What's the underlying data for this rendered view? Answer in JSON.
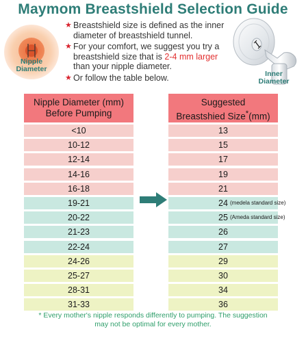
{
  "title": "Maymom Breastshield Selection Guide",
  "nipple_label_line1": "Nipple",
  "nipple_label_line2": "Diameter",
  "inner_label_line1": "Inner",
  "inner_label_line2": "Diameter",
  "bullets": {
    "b1": "Breastshield size is defined as the inner diameter of breastshield tunnel.",
    "b2_pre": "For your comfort, we suggest you try a breastshield size that is ",
    "b2_hl": "2-4 mm larger",
    "b2_post": " than your nipple diameter.",
    "b3": "Or follow the table below."
  },
  "table": {
    "left_header_line1": "Nipple Diameter (mm)",
    "left_header_line2": "Before Pumping",
    "right_header_line1": "Suggested",
    "right_header_line2": "Breastshied Size",
    "right_header_star": "*",
    "right_header_unit": "(mm)",
    "rows": [
      {
        "nipple": "<10",
        "size": "13",
        "note": "",
        "color": "#f6cfcc"
      },
      {
        "nipple": "10-12",
        "size": "15",
        "note": "",
        "color": "#f6cfcc"
      },
      {
        "nipple": "12-14",
        "size": "17",
        "note": "",
        "color": "#f6cfcc"
      },
      {
        "nipple": "14-16",
        "size": "19",
        "note": "",
        "color": "#f6cfcc"
      },
      {
        "nipple": "16-18",
        "size": "21",
        "note": "",
        "color": "#f6cfcc"
      },
      {
        "nipple": "19-21",
        "size": "24",
        "note": "(medela standard size)",
        "color": "#c9e8e0"
      },
      {
        "nipple": "20-22",
        "size": "25",
        "note": "(Ameda standard size)",
        "color": "#c9e8e0"
      },
      {
        "nipple": "21-23",
        "size": "26",
        "note": "",
        "color": "#c9e8e0"
      },
      {
        "nipple": "22-24",
        "size": "27",
        "note": "",
        "color": "#c9e8e0"
      },
      {
        "nipple": "24-26",
        "size": "29",
        "note": "",
        "color": "#eef3c4"
      },
      {
        "nipple": "25-27",
        "size": "30",
        "note": "",
        "color": "#eef3c4"
      },
      {
        "nipple": "28-31",
        "size": "34",
        "note": "",
        "color": "#eef3c4"
      },
      {
        "nipple": "31-33",
        "size": "36",
        "note": "",
        "color": "#eef3c4"
      }
    ]
  },
  "footnote_line1": "* Every mother's nipple responds differently to pumping. The suggestion",
  "footnote_line2": "may not be optimal for every mother.",
  "colors": {
    "title": "#2e7d77",
    "header": "#f2787d",
    "arrow": "#2e7d77",
    "footnote": "#2e9e6a"
  }
}
